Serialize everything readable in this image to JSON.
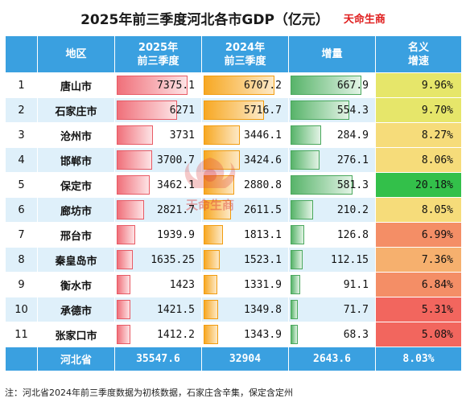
{
  "header": {
    "title": "2025年前三季度河北各市GDP（亿元）",
    "brand": "天命生商"
  },
  "table": {
    "columns": [
      "",
      "地区",
      "2025年\n前三季度",
      "2024年\n前三季度",
      "增量",
      "名义\n增速"
    ]
  },
  "colors": {
    "header_bg": "#3aa0e0",
    "bar_2025": "#f0707a",
    "bar_2024": "#f7a823",
    "bar_increase": "#58b46a",
    "rate_high": "#33c04a",
    "rate_mid": "#f2e07a",
    "rate_low": "#f2665e"
  },
  "chart_data": {
    "type": "table",
    "title": "2025年前三季度河北各市GDP（亿元）",
    "columns": [
      "",
      "地区",
      "2025年前三季度",
      "2024年前三季度",
      "增量",
      "名义增速"
    ],
    "rows": [
      {
        "rank": "1",
        "city": "唐山市",
        "gdp2025": "7375.1",
        "gdp2024": "6707.2",
        "increase": "667.9",
        "growth": "9.96%",
        "v2025": 7375.1,
        "v2024": 6707.2,
        "vinc": 667.9,
        "vrate": 9.96
      },
      {
        "rank": "2",
        "city": "石家庄市",
        "gdp2025": "6271",
        "gdp2024": "5716.7",
        "increase": "554.3",
        "growth": "9.70%",
        "v2025": 6271,
        "v2024": 5716.7,
        "vinc": 554.3,
        "vrate": 9.7
      },
      {
        "rank": "3",
        "city": "沧州市",
        "gdp2025": "3731",
        "gdp2024": "3446.1",
        "increase": "284.9",
        "growth": "8.27%",
        "v2025": 3731,
        "v2024": 3446.1,
        "vinc": 284.9,
        "vrate": 8.27
      },
      {
        "rank": "4",
        "city": "邯郸市",
        "gdp2025": "3700.7",
        "gdp2024": "3424.6",
        "increase": "276.1",
        "growth": "8.06%",
        "v2025": 3700.7,
        "v2024": 3424.6,
        "vinc": 276.1,
        "vrate": 8.06
      },
      {
        "rank": "5",
        "city": "保定市",
        "gdp2025": "3462.1",
        "gdp2024": "2880.8",
        "increase": "581.3",
        "growth": "20.18%",
        "v2025": 3462.1,
        "v2024": 2880.8,
        "vinc": 581.3,
        "vrate": 20.18
      },
      {
        "rank": "6",
        "city": "廊坊市",
        "gdp2025": "2821.7",
        "gdp2024": "2611.5",
        "increase": "210.2",
        "growth": "8.05%",
        "v2025": 2821.7,
        "v2024": 2611.5,
        "vinc": 210.2,
        "vrate": 8.05
      },
      {
        "rank": "7",
        "city": "邢台市",
        "gdp2025": "1939.9",
        "gdp2024": "1813.1",
        "increase": "126.8",
        "growth": "6.99%",
        "v2025": 1939.9,
        "v2024": 1813.1,
        "vinc": 126.8,
        "vrate": 6.99
      },
      {
        "rank": "8",
        "city": "秦皇岛市",
        "gdp2025": "1635.25",
        "gdp2024": "1523.1",
        "increase": "112.15",
        "growth": "7.36%",
        "v2025": 1635.25,
        "v2024": 1523.1,
        "vinc": 112.15,
        "vrate": 7.36
      },
      {
        "rank": "9",
        "city": "衡水市",
        "gdp2025": "1423",
        "gdp2024": "1331.9",
        "increase": "91.1",
        "growth": "6.84%",
        "v2025": 1423,
        "v2024": 1331.9,
        "vinc": 91.1,
        "vrate": 6.84
      },
      {
        "rank": "10",
        "city": "承德市",
        "gdp2025": "1421.5",
        "gdp2024": "1349.8",
        "increase": "71.7",
        "growth": "5.31%",
        "v2025": 1421.5,
        "v2024": 1349.8,
        "vinc": 71.7,
        "vrate": 5.31
      },
      {
        "rank": "11",
        "city": "张家口市",
        "gdp2025": "1412.2",
        "gdp2024": "1343.9",
        "increase": "68.3",
        "growth": "5.08%",
        "v2025": 1412.2,
        "v2024": 1343.9,
        "vinc": 68.3,
        "vrate": 5.08
      }
    ],
    "total": {
      "city": "河北省",
      "gdp2025": "35547.6",
      "gdp2024": "32904",
      "increase": "2643.6",
      "growth": "8.03%"
    }
  },
  "footnote": "注：河北省2024年前三季度数据为初核数据，石家庄含辛集，保定含定州",
  "watermark": "天命生商"
}
